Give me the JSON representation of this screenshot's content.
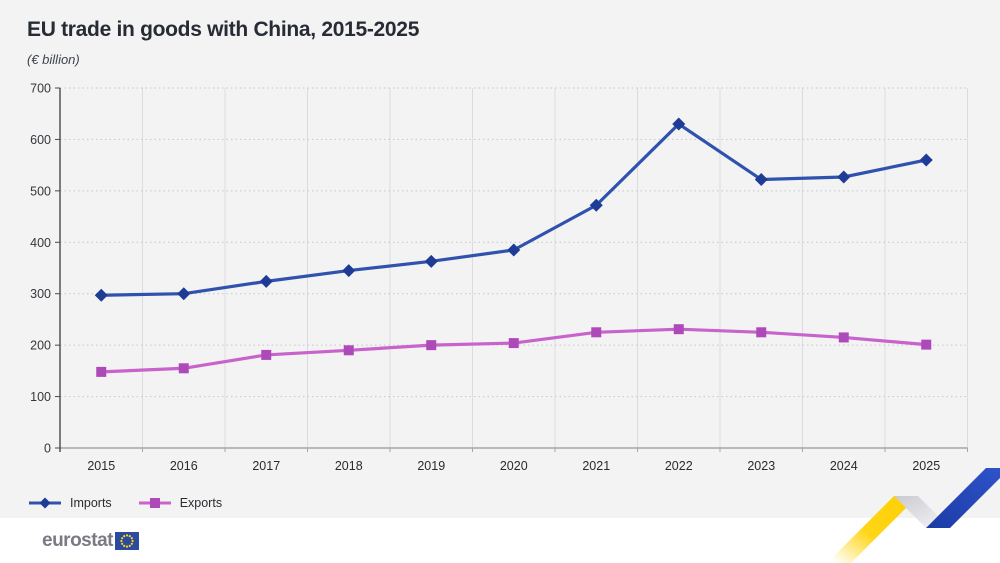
{
  "page": {
    "panel_background": "#f3f3f4"
  },
  "header": {
    "title": "EU trade in goods with China, 2015-2025",
    "subtitle": "(€ billion)"
  },
  "legend": {
    "position": "bottom-left",
    "items": [
      {
        "label": "Imports"
      },
      {
        "label": "Exports"
      }
    ]
  },
  "footer": {
    "logo_text": "eurostat"
  },
  "colors": {
    "imports_line": "#3052ae",
    "imports_marker": "#1e3c96",
    "exports_line": "#c763cb",
    "exports_marker": "#ae49ba",
    "eu_blue": "#2c4b9e",
    "eu_yellow": "#ffd617"
  },
  "chart_data": {
    "type": "line",
    "title": "EU trade in goods with China, 2015-2025",
    "ylabel": "€ billion",
    "categories": [
      "2015",
      "2016",
      "2017",
      "2018",
      "2019",
      "2020",
      "2021",
      "2022",
      "2023",
      "2024",
      "2025"
    ],
    "series": [
      {
        "name": "Imports",
        "marker": "diamond",
        "line_color": "#3052ae",
        "marker_color": "#1e3c96",
        "values": [
          297,
          300,
          324,
          345,
          363,
          385,
          472,
          630,
          522,
          527,
          560
        ]
      },
      {
        "name": "Exports",
        "marker": "square",
        "line_color": "#c763cb",
        "marker_color": "#ae49ba",
        "values": [
          148,
          155,
          181,
          190,
          200,
          204,
          225,
          231,
          225,
          215,
          201
        ]
      }
    ],
    "ylim": [
      0,
      700
    ],
    "ytick_step": 100,
    "grid": "horizontal dotted lines each 100; vertical solid light lines at category boundaries",
    "legend_position": "bottom-left"
  }
}
